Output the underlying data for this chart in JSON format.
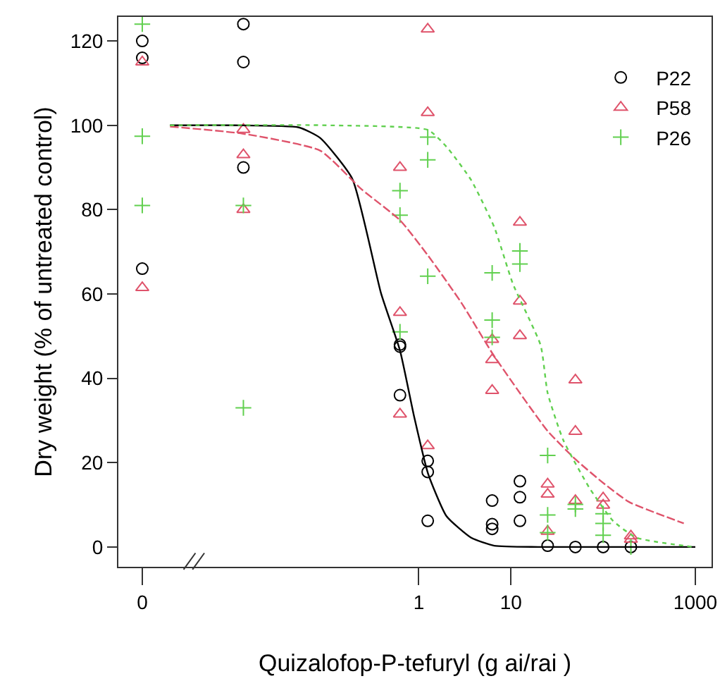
{
  "chart_data": {
    "type": "scatter",
    "xlabel": "Quizalofop-P-tefuryl (g ai/rai )",
    "ylabel": "Dry weight (% of untreated control)",
    "log": "x",
    "xlim": [
      0.00055,
      1500
    ],
    "xticks": [
      {
        "value": 0.001,
        "label": "0"
      },
      1,
      10,
      1000
    ],
    "ylim": [
      -4.7,
      125.7
    ],
    "yticks": [
      0,
      20,
      40,
      60,
      80,
      100,
      120
    ],
    "grid": false,
    "legend": "top right",
    "series": [
      {
        "name": "P22",
        "type": "scatter",
        "marker": "circle",
        "color": "#000000",
        "x": [
          0.001,
          0.001,
          0.001,
          0.0125,
          0.0125,
          0.0125,
          0.625,
          0.625,
          0.625,
          1.25,
          1.25,
          1.25,
          6.25,
          6.25,
          6.25,
          12.5,
          12.5,
          12.5,
          25,
          50,
          100,
          200
        ],
        "values": [
          120,
          116,
          66,
          124,
          115,
          90,
          48,
          47.5,
          36,
          20.4,
          17.8,
          6.2,
          11,
          5.4,
          4.3,
          15.6,
          11.8,
          6.2,
          0.3,
          0,
          0,
          0
        ]
      },
      {
        "name": "P58",
        "type": "scatter",
        "marker": "triangle",
        "color": "#df536b",
        "x": [
          0.001,
          0.001,
          0.0125,
          0.0125,
          0.0125,
          0.625,
          0.625,
          0.625,
          1.25,
          1.25,
          1.25,
          6.25,
          6.25,
          6.25,
          12.5,
          12.5,
          12.5,
          25,
          25,
          25,
          50,
          50,
          50,
          100,
          100,
          200,
          200
        ],
        "values": [
          115,
          61.5,
          99,
          93,
          80,
          90,
          55.6,
          31.5,
          122.8,
          103,
          24,
          49.2,
          44.4,
          37.1,
          77,
          58.3,
          50.1,
          14.9,
          12.5,
          3.7,
          39.6,
          27.4,
          11,
          11.6,
          9.9,
          2.6,
          1.8
        ]
      },
      {
        "name": "P26",
        "type": "scatter",
        "marker": "cross",
        "color": "#61d04f",
        "x": [
          0.001,
          0.001,
          0.001,
          0.0125,
          0.0125,
          0.625,
          0.625,
          0.625,
          1.25,
          1.25,
          1.25,
          6.25,
          6.25,
          6.25,
          12.5,
          12.5,
          25,
          25,
          25,
          50,
          50,
          100,
          100,
          100,
          200
        ],
        "values": [
          124,
          97.4,
          81,
          81,
          33,
          84.5,
          78.7,
          51,
          97.2,
          91.8,
          64.2,
          65,
          53.8,
          49.7,
          70.2,
          67.1,
          21.7,
          7.6,
          3.4,
          10.1,
          9,
          7.9,
          5.6,
          2.8,
          0
        ]
      },
      {
        "type": "line",
        "line_style": "solid",
        "color": "#000000",
        "x": [
          0.002,
          0.01,
          0.05,
          0.085,
          0.19,
          0.39,
          0.625,
          0.89,
          1.26,
          2,
          3.7,
          6.6,
          20,
          1000
        ],
        "values": [
          100,
          100,
          99.5,
          97,
          87.3,
          60.1,
          46.6,
          30.9,
          17.4,
          7.3,
          2.2,
          0.3,
          0,
          0
        ]
      },
      {
        "type": "line",
        "line_style": "dashed",
        "color": "#df536b",
        "x": [
          0.002,
          0.0125,
          0.085,
          0.24,
          0.625,
          1.26,
          2.9,
          6.25,
          12.5,
          25,
          50,
          100,
          190,
          750
        ],
        "values": [
          99.7,
          98,
          94,
          84.8,
          77.5,
          69.1,
          57.9,
          46,
          36.5,
          27.5,
          20.8,
          15.2,
          10.7,
          5.6
        ]
      },
      {
        "type": "line",
        "line_style": "dotted",
        "color": "#61d04f",
        "x": [
          0.002,
          0.1,
          1.26,
          2,
          3.7,
          6.6,
          10.5,
          21,
          25,
          37,
          71,
          128,
          230,
          950
        ],
        "values": [
          100,
          100,
          98.9,
          94.9,
          87,
          75.8,
          62.4,
          47.8,
          36.5,
          25.3,
          14,
          6.2,
          2.2,
          0
        ]
      }
    ]
  }
}
